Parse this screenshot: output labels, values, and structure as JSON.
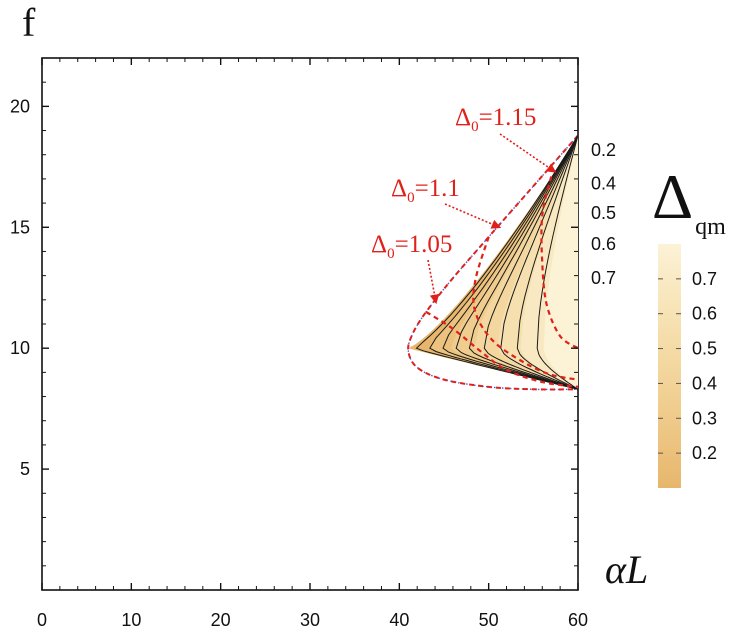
{
  "chart_data": {
    "type": "contour",
    "xlabel": "αL",
    "ylabel": "f",
    "xlim": [
      0,
      60
    ],
    "ylim": [
      0,
      22
    ],
    "x_ticks": [
      0,
      10,
      20,
      30,
      40,
      50,
      60
    ],
    "y_ticks": [
      5,
      10,
      15,
      20
    ],
    "region": {
      "fill_colors_low_to_high": [
        "#e7b66c",
        "#ecc27e",
        "#f0cd8f",
        "#f3d79f",
        "#f6e0b0",
        "#f9e9c2",
        "#fcf2d6"
      ],
      "boundary": [
        [
          60,
          18.8
        ],
        [
          55,
          16.7
        ],
        [
          50,
          14.6
        ],
        [
          46,
          12.9
        ],
        [
          43,
          11.5
        ],
        [
          41.5,
          10.6
        ],
        [
          41,
          9.9
        ],
        [
          42,
          9.2
        ],
        [
          45,
          8.7
        ],
        [
          50,
          8.4
        ],
        [
          55,
          8.3
        ],
        [
          60,
          8.3
        ]
      ]
    },
    "contour_levels": [
      "0.2",
      "0.4",
      "0.5",
      "0.6",
      "0.7"
    ],
    "dashed_contours": [
      {
        "label": "Δ₀=1.05",
        "pts": [
          [
            43,
            11.5
          ],
          [
            46,
            10.8
          ],
          [
            49,
            9.9
          ],
          [
            52,
            9.1
          ],
          [
            56,
            8.6
          ],
          [
            60,
            8.4
          ]
        ]
      },
      {
        "label": "Δ₀=1.1",
        "pts": [
          [
            50,
            14.6
          ],
          [
            48.5,
            12.8
          ],
          [
            48.5,
            11.5
          ],
          [
            50.5,
            10.3
          ],
          [
            54,
            9.4
          ],
          [
            57,
            8.9
          ],
          [
            60,
            8.7
          ]
        ]
      },
      {
        "label": "Δ₀=1.15",
        "pts": [
          [
            57,
            17.1
          ],
          [
            56,
            15.5
          ],
          [
            56,
            13.5
          ],
          [
            56.5,
            11.8
          ],
          [
            58,
            10.5
          ],
          [
            60,
            10.0
          ]
        ]
      }
    ],
    "annotations": [
      {
        "text_main": "Δ",
        "text_sub": "0",
        "text_rest": "=1.15",
        "target": [
          57.4,
          17.3
        ]
      },
      {
        "text_main": "Δ",
        "text_sub": "0",
        "text_rest": "=1.1",
        "target": [
          51.2,
          15.0
        ]
      },
      {
        "text_main": "Δ",
        "text_sub": "0",
        "text_rest": "=1.05",
        "target": [
          44.1,
          11.9
        ]
      }
    ],
    "colorbar": {
      "title_main": "Δ",
      "title_sub": "qm",
      "ticks": [
        "0.7",
        "0.6",
        "0.5",
        "0.4",
        "0.3",
        "0.2"
      ],
      "tick_values": [
        0.7,
        0.6,
        0.5,
        0.4,
        0.3,
        0.2
      ],
      "range": [
        0.1,
        0.8
      ]
    }
  }
}
